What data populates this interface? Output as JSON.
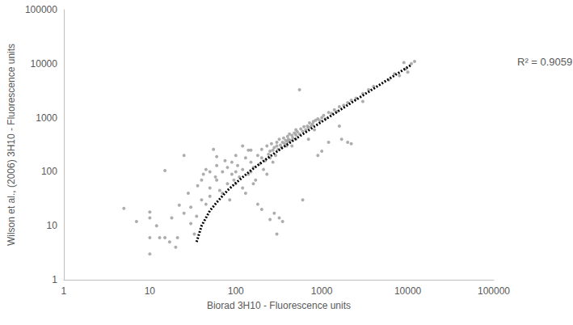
{
  "chart_data": {
    "type": "scatter",
    "x_label": "Biorad 3H10 - Fluorescence units",
    "y_label": "Wilson et al., (2006) 3H10 - Fluorescence units",
    "log": true,
    "grid": false,
    "xlim": [
      1,
      100000
    ],
    "xticks": [
      1,
      10,
      100,
      1000,
      10000,
      100000
    ],
    "ylim": [
      1,
      100000
    ],
    "yticks": [
      1,
      10,
      100,
      1000,
      10000,
      100000
    ],
    "annotations": [
      {
        "text": "R² = 0.9059"
      }
    ],
    "series": [
      {
        "type": "scatter",
        "color": "#999999",
        "marker": "circle",
        "x": [
          5,
          7,
          10,
          10,
          10,
          10,
          12,
          13,
          15,
          15,
          17,
          18,
          20,
          21,
          22,
          25,
          25,
          28,
          30,
          30,
          33,
          35,
          36,
          40,
          40,
          42,
          45,
          45,
          50,
          50,
          50,
          55,
          58,
          60,
          60,
          65,
          70,
          70,
          75,
          80,
          80,
          85,
          90,
          90,
          95,
          100,
          100,
          100,
          105,
          110,
          120,
          120,
          130,
          130,
          140,
          150,
          150,
          150,
          160,
          170,
          180,
          180,
          190,
          200,
          200,
          200,
          210,
          220,
          230,
          240,
          250,
          250,
          250,
          260,
          270,
          280,
          280,
          290,
          300,
          300,
          300,
          310,
          320,
          320,
          330,
          340,
          350,
          350,
          360,
          370,
          380,
          390,
          400,
          400,
          410,
          420,
          430,
          450,
          460,
          480,
          500,
          500,
          500,
          520,
          550,
          550,
          570,
          600,
          600,
          620,
          650,
          680,
          700,
          720,
          750,
          780,
          800,
          820,
          850,
          900,
          900,
          950,
          1000,
          1000,
          1050,
          1100,
          1200,
          1200,
          1300,
          1400,
          1500,
          1600,
          1600,
          1700,
          1800,
          2000,
          2000,
          2200,
          2200,
          2500,
          3000,
          3000,
          3500,
          4000,
          6000,
          7000,
          8000,
          9000,
          9500,
          10000,
          11000,
          12000,
          160,
          230,
          120,
          60,
          140,
          700,
          450,
          270
        ],
        "values": [
          21,
          12,
          3,
          6,
          14,
          18,
          10,
          6,
          105,
          6,
          5,
          14,
          4,
          6,
          24,
          200,
          17,
          40,
          11,
          22,
          7,
          15,
          55,
          70,
          30,
          90,
          110,
          25,
          50,
          100,
          35,
          260,
          80,
          130,
          70,
          45,
          100,
          40,
          160,
          120,
          60,
          30,
          150,
          90,
          70,
          100,
          200,
          60,
          130,
          80,
          50,
          110,
          180,
          40,
          90,
          100,
          250,
          150,
          120,
          70,
          200,
          25,
          140,
          20,
          180,
          260,
          110,
          160,
          300,
          210,
          13,
          240,
          180,
          330,
          250,
          17,
          280,
          200,
          7,
          300,
          350,
          260,
          14,
          400,
          310,
          280,
          12,
          350,
          420,
          330,
          380,
          300,
          450,
          360,
          400,
          500,
          380,
          470,
          420,
          520,
          480,
          600,
          400,
          550,
          3300,
          500,
          620,
          30,
          560,
          680,
          600,
          700,
          650,
          800,
          700,
          760,
          850,
          600,
          900,
          200,
          950,
          880,
          240,
          1000,
          1100,
          950,
          350,
          1250,
          1200,
          1400,
          1300,
          700,
          1600,
          400,
          1700,
          350,
          1900,
          330,
          2100,
          2300,
          2000,
          2800,
          3300,
          3800,
          5000,
          6500,
          6000,
          10500,
          8000,
          7000,
          10000,
          11000,
          60,
          90,
          300,
          190,
          250,
          400,
          300,
          150
        ]
      },
      {
        "type": "line",
        "color": "#000000",
        "line_style": "dotted",
        "x": [
          35,
          40,
          50,
          60,
          80,
          100,
          150,
          200,
          300,
          500,
          1000,
          2000,
          5000,
          11000
        ],
        "values": [
          5,
          10,
          19,
          27,
          45,
          62,
          106,
          149,
          236,
          410,
          845,
          1715,
          4325,
          9545
        ]
      }
    ]
  }
}
